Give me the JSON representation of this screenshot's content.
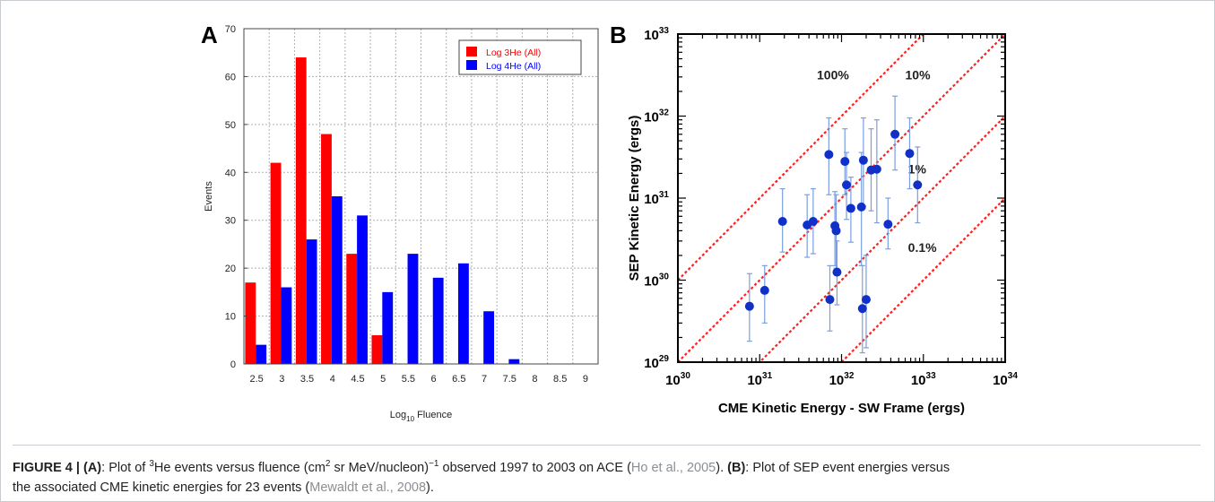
{
  "panels": {
    "a": "A",
    "b": "B"
  },
  "chart_data": [
    {
      "type": "bar",
      "xlabel": "Log",
      "xlabel_sub": "10",
      "xlabel_suffix": " Fluence",
      "ylabel": "Events",
      "ylim": [
        0,
        70
      ],
      "yticks": [
        "0",
        "10",
        "20",
        "30",
        "40",
        "50",
        "60",
        "70"
      ],
      "grid": true,
      "legend_position": "top-right",
      "categories": [
        "2.5",
        "3",
        "3.5",
        "4",
        "4.5",
        "5",
        "5.5",
        "6",
        "6.5",
        "7",
        "7.5",
        "8",
        "8.5",
        "9"
      ],
      "series": [
        {
          "name": "Log 3He (All)",
          "color": "#ff0000",
          "values": [
            17,
            42,
            64,
            48,
            23,
            6,
            0,
            0,
            0,
            0,
            0,
            0,
            0,
            0
          ]
        },
        {
          "name": "Log 4He (All)",
          "color": "#0000ff",
          "values": [
            4,
            16,
            26,
            35,
            31,
            15,
            23,
            18,
            21,
            11,
            1,
            0,
            0,
            0
          ]
        }
      ]
    },
    {
      "type": "scatter",
      "x_scale": "log",
      "y_scale": "log",
      "xlabel": "CME Kinetic Energy - SW Frame (ergs)",
      "ylabel": "SEP Kinetic Energy (ergs)",
      "xlim": [
        1e+30,
        1e+34
      ],
      "ylim": [
        1e+29,
        1e+33
      ],
      "xticks": [
        {
          "base": "10",
          "exp": "30"
        },
        {
          "base": "10",
          "exp": "31"
        },
        {
          "base": "10",
          "exp": "32"
        },
        {
          "base": "10",
          "exp": "33"
        },
        {
          "base": "10",
          "exp": "34"
        }
      ],
      "yticks": [
        {
          "base": "10",
          "exp": "29"
        },
        {
          "base": "10",
          "exp": "30"
        },
        {
          "base": "10",
          "exp": "31"
        },
        {
          "base": "10",
          "exp": "32"
        },
        {
          "base": "10",
          "exp": "33"
        }
      ],
      "point_color": "#1030c8",
      "errorbar_color": "#7a9ee0",
      "reference_line_color": "#ff2020",
      "reference_lines": [
        {
          "ratio": 1.0,
          "label": "100%"
        },
        {
          "ratio": 0.1,
          "label": "10%"
        },
        {
          "ratio": 0.01,
          "label": "1%"
        },
        {
          "ratio": 0.001,
          "label": "0.1%"
        }
      ],
      "points": [
        {
          "x": 7.5e+30,
          "y": 4.8e+29,
          "ylo": 1.8e+29,
          "yhi": 1.2e+30
        },
        {
          "x": 1.15e+31,
          "y": 7.5e+29,
          "ylo": 3e+29,
          "yhi": 1.5e+30
        },
        {
          "x": 1.9e+31,
          "y": 5.2e+30,
          "ylo": 2.2e+30,
          "yhi": 1.3e+31
        },
        {
          "x": 3.8e+31,
          "y": 4.7e+30,
          "ylo": 1.9e+30,
          "yhi": 1.1e+31
        },
        {
          "x": 4.5e+31,
          "y": 5.2e+30,
          "ylo": 2.1e+30,
          "yhi": 1.3e+31
        },
        {
          "x": 7e+31,
          "y": 3.4e+31,
          "ylo": 1.1e+31,
          "yhi": 9.5e+31
        },
        {
          "x": 7.2e+31,
          "y": 5.8e+29,
          "ylo": 2.4e+29,
          "yhi": 1.5e+30
        },
        {
          "x": 8.3e+31,
          "y": 4.6e+30,
          "ylo": 1.5e+30,
          "yhi": 1.2e+31
        },
        {
          "x": 8.6e+31,
          "y": 4e+30,
          "ylo": 1.4e+30,
          "yhi": 1.1e+31
        },
        {
          "x": 8.8e+31,
          "y": 1.25e+30,
          "ylo": 5e+29,
          "yhi": 3e+30
        },
        {
          "x": 1.1e+32,
          "y": 2.8e+31,
          "ylo": 1.1e+31,
          "yhi": 7e+31
        },
        {
          "x": 1.15e+32,
          "y": 1.45e+31,
          "ylo": 5.5e+30,
          "yhi": 3.6e+31
        },
        {
          "x": 1.3e+32,
          "y": 7.5e+30,
          "ylo": 2.9e+30,
          "yhi": 1.8e+31
        },
        {
          "x": 1.75e+32,
          "y": 7.8e+30,
          "ylo": 1.5e+30,
          "yhi": 3.6e+31
        },
        {
          "x": 1.8e+32,
          "y": 4.5e+29,
          "ylo": 1.3e+29,
          "yhi": 1.5e+30
        },
        {
          "x": 1.85e+32,
          "y": 2.9e+31,
          "ylo": 8e+30,
          "yhi": 9.5e+31
        },
        {
          "x": 2e+32,
          "y": 5.8e+29,
          "ylo": 1.5e+29,
          "yhi": 2e+30
        },
        {
          "x": 2.3e+32,
          "y": 2.2e+31,
          "ylo": 7e+30,
          "yhi": 7e+31
        },
        {
          "x": 2.7e+32,
          "y": 2.25e+31,
          "ylo": 5e+30,
          "yhi": 9e+31
        },
        {
          "x": 3.7e+32,
          "y": 4.8e+30,
          "ylo": 2.4e+30,
          "yhi": 1e+31
        },
        {
          "x": 4.5e+32,
          "y": 6e+31,
          "ylo": 2.2e+31,
          "yhi": 1.75e+32
        },
        {
          "x": 6.8e+32,
          "y": 3.5e+31,
          "ylo": 1.3e+31,
          "yhi": 9.5e+31
        },
        {
          "x": 8.5e+32,
          "y": 1.45e+31,
          "ylo": 5e+30,
          "yhi": 4.2e+31
        }
      ]
    }
  ],
  "caption": {
    "figure_label": "FIGURE 4 | ",
    "a_label": "(A)",
    "a_text_1": ": Plot of ",
    "a_sup_3": "3",
    "a_text_2": "He events versus fluence (cm",
    "a_sup_2": "2",
    "a_text_3": " sr MeV/nucleon)",
    "a_sup_neg1": "−1",
    "a_text_4": " observed 1997 to 2003 on ACE (",
    "a_ref": "Ho et al., 2005",
    "a_text_5": "). ",
    "b_label": "(B)",
    "b_text_1": ": Plot of SEP event energies versus",
    "b_text_2": "the associated CME kinetic energies for 23 events (",
    "b_ref": "Mewaldt et al., 2008",
    "b_text_3": ")."
  }
}
